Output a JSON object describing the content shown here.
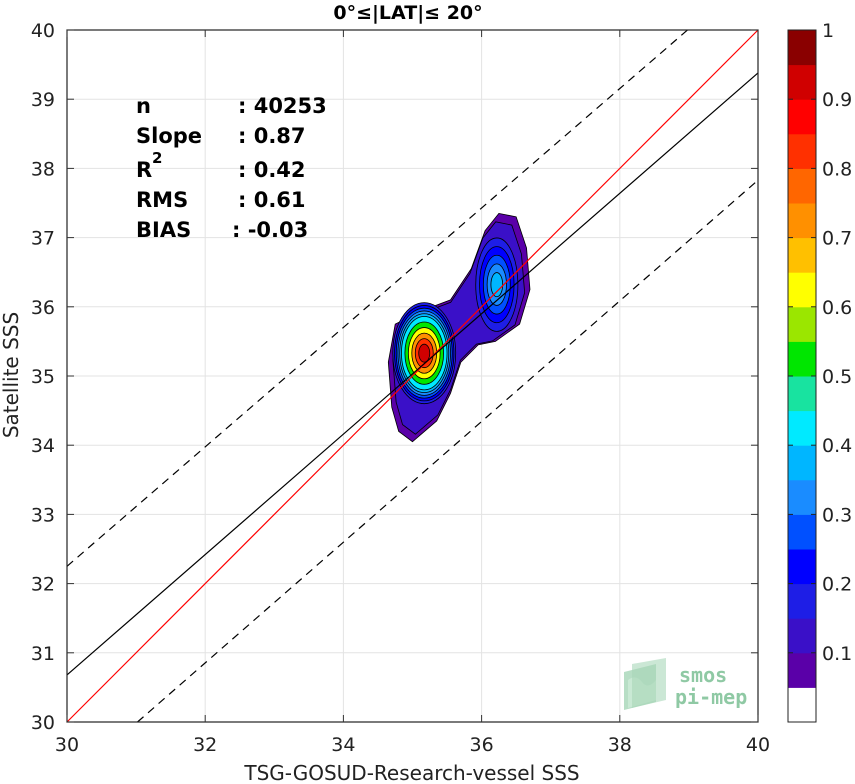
{
  "chart_data": {
    "type": "heatmap",
    "subtype": "filled-contour density scatter",
    "title": "0°≤|LAT|≤ 20°",
    "xlabel": "TSG-GOSUD-Research-vessel SSS",
    "ylabel": "Satellite SSS",
    "xlim": [
      30,
      40
    ],
    "ylim": [
      30,
      40
    ],
    "x_ticks": [
      "30",
      "32",
      "34",
      "36",
      "38",
      "40"
    ],
    "y_ticks": [
      "30",
      "31",
      "32",
      "33",
      "34",
      "35",
      "36",
      "37",
      "38",
      "39",
      "40"
    ],
    "grid": true,
    "stats": {
      "labels": [
        "n",
        "Slope",
        "R",
        "RMS",
        "BIAS"
      ],
      "superscript": "2",
      "values": [
        ": 40253",
        ": 0.87",
        ": 0.42",
        ": 0.61",
        ": -0.03"
      ]
    },
    "lines": [
      {
        "kind": "one-to-one",
        "color": "#ff0000",
        "style": "solid",
        "points": [
          [
            30,
            30
          ],
          [
            40,
            40
          ]
        ]
      },
      {
        "kind": "regression",
        "color": "#000000",
        "style": "solid",
        "points": [
          [
            30,
            30.68
          ],
          [
            40,
            39.38
          ]
        ]
      },
      {
        "kind": "upper-bound",
        "color": "#000000",
        "style": "dashed",
        "points": [
          [
            30,
            32.25
          ],
          [
            38.98,
            40
          ]
        ]
      },
      {
        "kind": "lower-bound",
        "color": "#000000",
        "style": "dashed",
        "points": [
          [
            31.02,
            30
          ],
          [
            40,
            37.83
          ]
        ]
      }
    ],
    "density_contours": {
      "levels": [
        0.05,
        0.1,
        0.15,
        0.2,
        0.25,
        0.3,
        0.35,
        0.4,
        0.5,
        0.6,
        0.7,
        0.8,
        0.9
      ],
      "peaks": [
        {
          "x": 35.17,
          "y": 35.33,
          "max_level": 0.95
        },
        {
          "x": 36.22,
          "y": 36.32,
          "max_level": 0.35
        }
      ]
    },
    "colorbar": {
      "range": [
        0,
        1
      ],
      "ticks": [
        "0.1",
        "0.2",
        "0.3",
        "0.4",
        "0.5",
        "0.6",
        "0.7",
        "0.8",
        "0.9",
        "1"
      ],
      "colors": [
        "#ffffff",
        "#5a00a8",
        "#3a10c8",
        "#1e1ee6",
        "#0000ff",
        "#0050ff",
        "#1a8cff",
        "#00b6ff",
        "#00eaff",
        "#18e3a0",
        "#00e600",
        "#9be600",
        "#ffff00",
        "#ffc000",
        "#ff9000",
        "#ff6600",
        "#ff3000",
        "#ff0000",
        "#d00000",
        "#8a0000"
      ]
    }
  },
  "watermark": {
    "line1": "smos",
    "line2": "pi-mep",
    "color": "#8fc9a4"
  }
}
